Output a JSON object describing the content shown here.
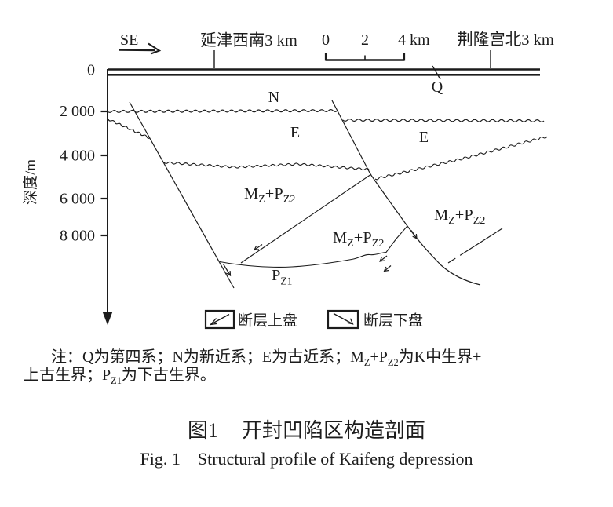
{
  "colors": {
    "ink": "#1c1c1c",
    "background": "#ffffff"
  },
  "header": {
    "direction": "SE",
    "left_location": "延津西南3 km",
    "right_location": "荆隆宫北3 km",
    "scale": {
      "t0": "0",
      "t2": "2",
      "t4": "4 km"
    }
  },
  "axis": {
    "title": "深度/m",
    "ticks": [
      "0",
      "2 000",
      "4 000",
      "6 000",
      "8 000"
    ]
  },
  "strata": {
    "q": "Q",
    "n": "N",
    "e_left": "E",
    "e_right": "E",
    "mz": "M",
    "mz_sub": "Z",
    "plus_p": "+P",
    "p_sub": "Z2",
    "pz1": "P",
    "pz1_sub": "Z1"
  },
  "legend": {
    "hanging_wall": "断层上盘",
    "foot_wall": "断层下盘"
  },
  "note": {
    "l1a": "注：Q为第四系；N为新近系；E为古近系；M",
    "l1b": "Z",
    "l1c": "+P",
    "l1d": "Z2",
    "l1e": "为K中生界+",
    "l2a": "上古生界；P",
    "l2b": "Z1",
    "l2c": "为下古生界。"
  },
  "captions": {
    "cn_fig": "图1",
    "cn_title": "开封凹陷区构造剖面",
    "en_fig": "Fig. 1",
    "en_title": "Structural profile of Kaifeng depression"
  }
}
